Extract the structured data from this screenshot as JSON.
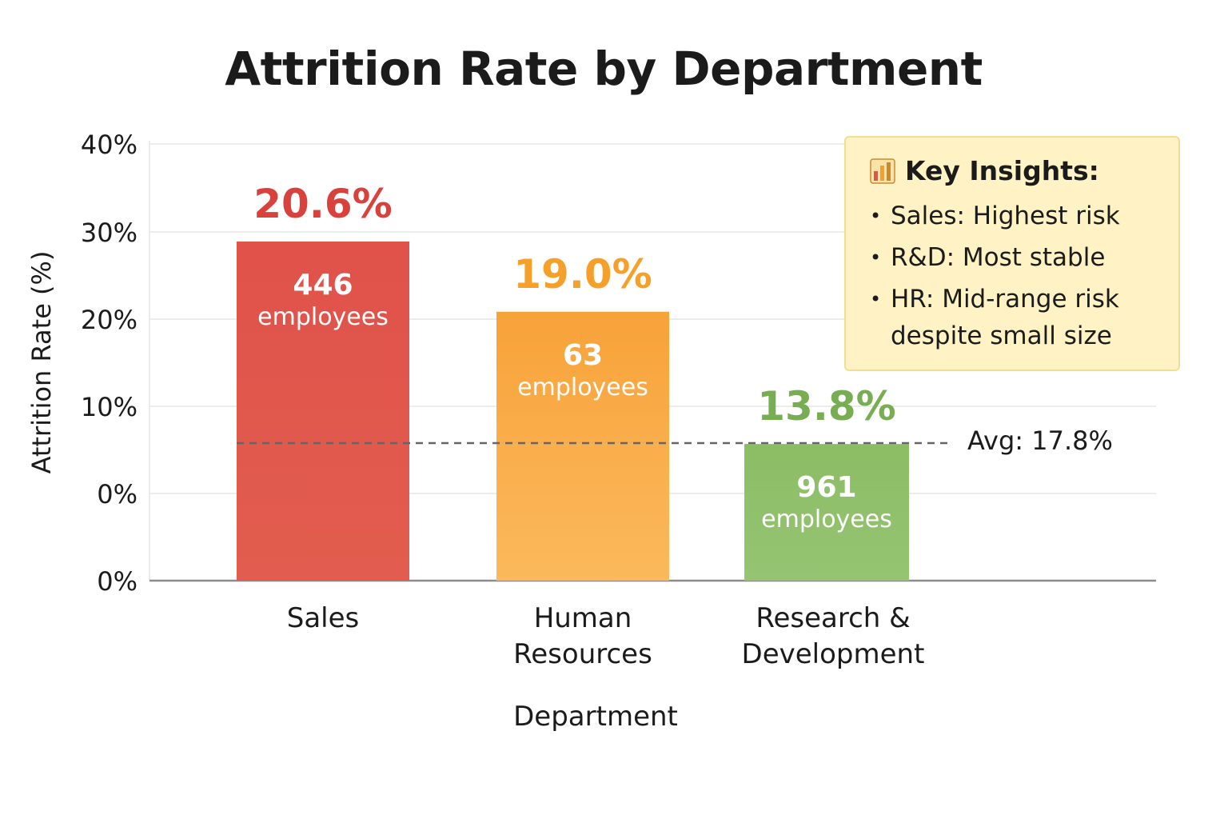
{
  "chart_data": {
    "type": "bar",
    "title": "Attrition Rate by Department",
    "xlabel": "Department",
    "ylabel": "Attrition Rate (%)",
    "ylim": [
      0,
      40
    ],
    "y_tick_labels": [
      "0%",
      "0%",
      "10%",
      "20%",
      "30%",
      "40%"
    ],
    "categories": [
      [
        "Sales"
      ],
      [
        "Human",
        "Resources"
      ],
      [
        "Research &",
        "Development"
      ]
    ],
    "values": [
      20.6,
      19.0,
      13.8
    ],
    "value_labels": [
      "20.6%",
      "19.0%",
      "13.8%"
    ],
    "employee_counts": [
      "446",
      "63",
      "961"
    ],
    "employee_unit": "employees",
    "colors": {
      "sales_top": "#e0524a",
      "sales_bottom": "#e25d4f",
      "hr_top": "#f8a23a",
      "hr_bottom": "#fbb95c",
      "rd_top": "#8bbd65",
      "rd_bottom": "#96c472",
      "sales_label": "#d9413d",
      "hr_label": "#f5a02b",
      "rd_label": "#78ad53",
      "grid": "#e6e6e6",
      "axis": "#8c8c8c",
      "avg_line": "#666666"
    },
    "average": {
      "value": 17.8,
      "label": "Avg: 17.8%"
    },
    "grid": true,
    "legend": "none"
  },
  "insights": {
    "icon": "bar-chart-icon",
    "title": "Key Insights:",
    "items": [
      "Sales: Highest risk",
      "R&D: Most stable",
      "HR: Mid-range risk despite small size"
    ],
    "bullet": "•"
  }
}
